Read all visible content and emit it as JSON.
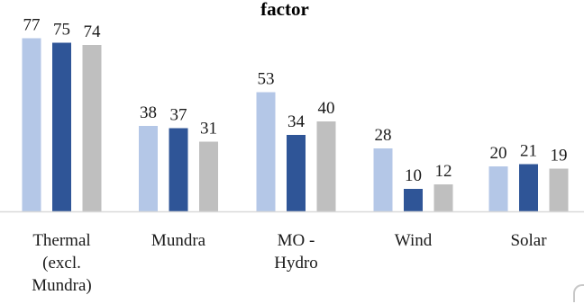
{
  "chart_data": {
    "type": "bar",
    "title": "factor",
    "categories": [
      [
        "Thermal",
        "(excl.",
        "Mundra)"
      ],
      [
        "Mundra"
      ],
      [
        "MO -",
        "Hydro"
      ],
      [
        "Wind"
      ],
      [
        "Solar"
      ]
    ],
    "series": [
      {
        "values": [
          77,
          38,
          53,
          28,
          20
        ],
        "color": "#b4c7e7"
      },
      {
        "values": [
          75,
          37,
          34,
          10,
          21
        ],
        "color": "#2f5597"
      },
      {
        "values": [
          74,
          31,
          40,
          12,
          19
        ],
        "color": "#bfbfbf"
      }
    ],
    "ylim": [
      0,
      80
    ],
    "grid": false,
    "legend": "none",
    "axis_color": "#d9d9d9"
  }
}
